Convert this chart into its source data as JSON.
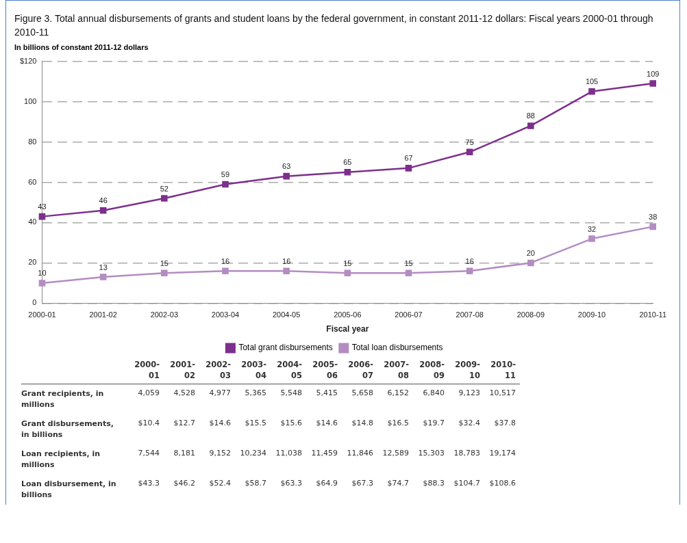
{
  "chart_data": [
    {
      "type": "line",
      "title": "Figure 3. Total annual disbursements of grants and student loans by the federal government, in constant 2011-12 dollars: Fiscal years 2000-01 through 2010-11",
      "ylabel": "In billions of constant 2011-12 dollars",
      "xlabel": "Fiscal year",
      "categories": [
        "2000-01",
        "2001-02",
        "2002-03",
        "2003-04",
        "2004-05",
        "2005-06",
        "2006-07",
        "2007-08",
        "2008-09",
        "2009-10",
        "2010-11"
      ],
      "series": [
        {
          "name": "Total grant disbursements",
          "color": "#7d2f8c",
          "values": [
            43,
            46,
            52,
            59,
            63,
            65,
            67,
            75,
            88,
            105,
            109
          ]
        },
        {
          "name": "Total loan disbursements",
          "color": "#b48cc2",
          "values": [
            10,
            13,
            15,
            16,
            16,
            15,
            15,
            16,
            20,
            32,
            38
          ]
        }
      ],
      "ylim": [
        0,
        120
      ],
      "yticks": [
        0,
        20,
        40,
        60,
        80,
        100,
        {
          "value": 120,
          "label": "$120"
        }
      ],
      "grid": "y",
      "legend": "bottom",
      "marker": "square",
      "data_labels": true
    },
    {
      "type": "heatmap",
      "categories": [
        "2000-01",
        "2001-02",
        "2002-03",
        "2003-04",
        "2004-05",
        "2005-06",
        "2006-07",
        "2007-08",
        "2008-09",
        "2009-10",
        "2010-11"
      ],
      "y_categories": [
        "Grant recipients, in millions",
        "Grant disbursements, in billions",
        "Loan recipients, in millions",
        "Loan disbursement, in billions"
      ],
      "cells": [
        [
          4059,
          4528,
          4977,
          5365,
          5548,
          5415,
          5658,
          6152,
          6840,
          9123,
          10517
        ],
        [
          10.4,
          12.7,
          14.6,
          15.5,
          15.6,
          14.6,
          14.8,
          16.5,
          19.7,
          32.4,
          37.8
        ],
        [
          7544,
          8181,
          9152,
          10234,
          11038,
          11459,
          11846,
          12589,
          15303,
          18783,
          19174
        ],
        [
          43.3,
          46.2,
          52.4,
          58.7,
          63.3,
          64.9,
          67.3,
          74.7,
          88.3,
          104.7,
          108.6
        ]
      ],
      "cell_labels": [
        [
          "4,059",
          "4,528",
          "4,977",
          "5,365",
          "5,548",
          "5,415",
          "5,658",
          "6,152",
          "6,840",
          "9,123",
          "10,517"
        ],
        [
          "$10.4",
          "$12.7",
          "$14.6",
          "$15.5",
          "$15.6",
          "$14.6",
          "$14.8",
          "$16.5",
          "$19.7",
          "$32.4",
          "$37.8"
        ],
        [
          "7,544",
          "8,181",
          "9,152",
          "10,234",
          "11,038",
          "11,459",
          "11,846",
          "12,589",
          "15,303",
          "18,783",
          "19,174"
        ],
        [
          "$43.3",
          "$46.2",
          "$52.4",
          "$58.7",
          "$63.3",
          "$64.9",
          "$67.3",
          "$74.7",
          "$88.3",
          "$104.7",
          "$108.6"
        ]
      ]
    }
  ]
}
